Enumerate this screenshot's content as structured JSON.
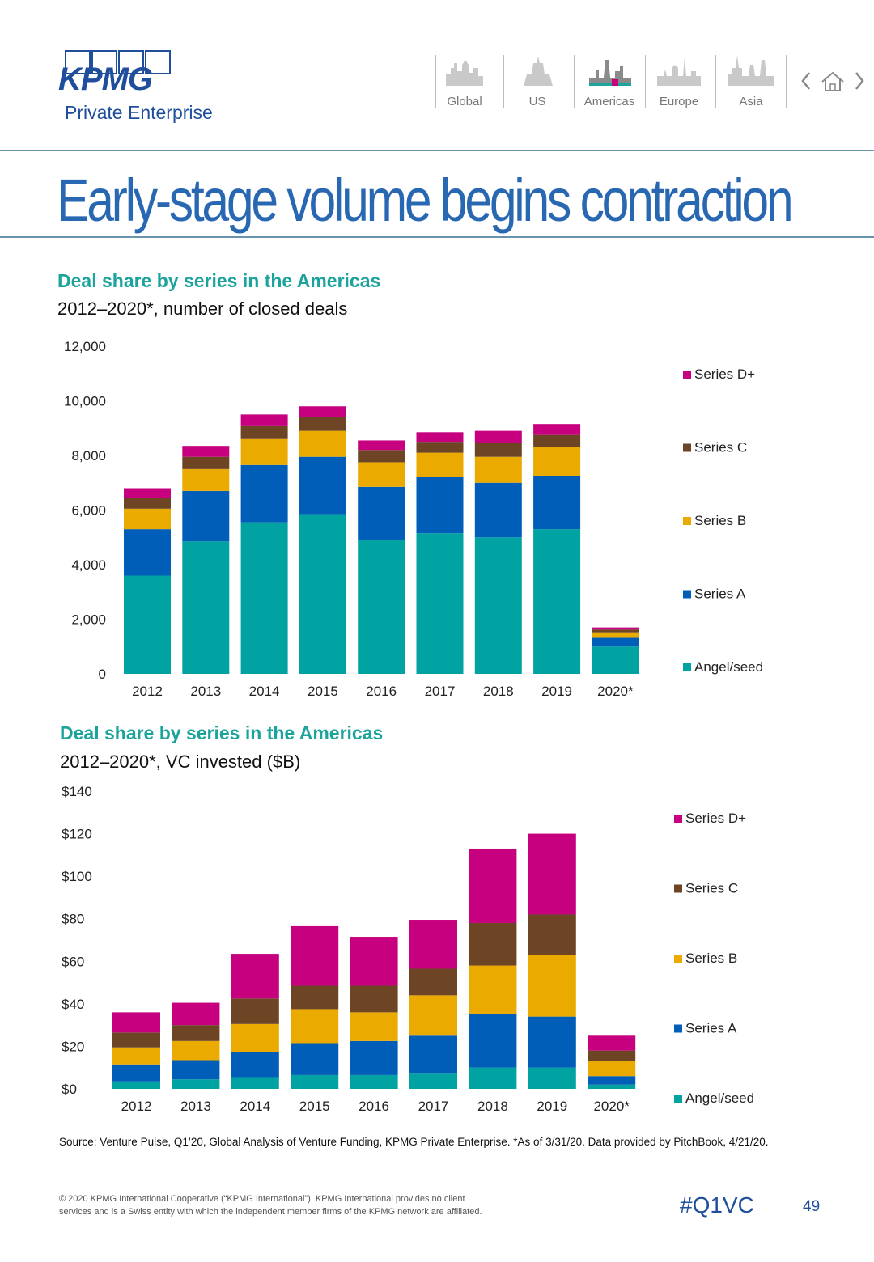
{
  "brand": {
    "logo": "KPMG",
    "subtitle": "Private Enterprise"
  },
  "nav": {
    "items": [
      {
        "label": "Global",
        "icon": "skyline-global-icon",
        "active": false
      },
      {
        "label": "US",
        "icon": "skyline-us-icon",
        "active": false
      },
      {
        "label": "Americas",
        "icon": "skyline-americas-icon",
        "active": true
      },
      {
        "label": "Europe",
        "icon": "skyline-europe-icon",
        "active": false
      },
      {
        "label": "Asia",
        "icon": "skyline-asia-icon",
        "active": false
      }
    ],
    "controls": [
      "chevron-left-icon",
      "home-icon",
      "chevron-right-icon"
    ]
  },
  "page_title": "Early-stage volume begins contraction",
  "colors": {
    "angel_seed": "#00a3a1",
    "series_a": "#005eb8",
    "series_b": "#eaaa00",
    "series_c": "#6d4525",
    "series_d": "#c6007e",
    "title_blue": "#2867b2",
    "heading_teal": "#1ba39c"
  },
  "chart_data": [
    {
      "type": "bar",
      "stacked": true,
      "title": "Deal share by series in the Americas",
      "subtitle": "2012–2020*, number of closed deals",
      "categories": [
        "2012",
        "2013",
        "2014",
        "2015",
        "2016",
        "2017",
        "2018",
        "2019",
        "2020*"
      ],
      "ylim": [
        0,
        12000
      ],
      "yticks": [
        "0",
        "2,000",
        "4,000",
        "6,000",
        "8,000",
        "10,000",
        "12,000"
      ],
      "ytick_values": [
        0,
        2000,
        4000,
        6000,
        8000,
        10000,
        12000
      ],
      "legend_position": "right",
      "series": [
        {
          "name": "Angel/seed",
          "values": [
            3600,
            4850,
            5550,
            5850,
            4900,
            5150,
            5000,
            5300,
            1000
          ]
        },
        {
          "name": "Series A",
          "values": [
            1700,
            1850,
            2100,
            2100,
            1950,
            2050,
            2000,
            1950,
            320
          ]
        },
        {
          "name": "Series B",
          "values": [
            750,
            800,
            950,
            950,
            900,
            900,
            950,
            1050,
            200
          ]
        },
        {
          "name": "Series C",
          "values": [
            400,
            450,
            500,
            500,
            450,
            400,
            500,
            450,
            100
          ]
        },
        {
          "name": "Series D+",
          "values": [
            350,
            400,
            400,
            400,
            350,
            350,
            450,
            400,
            80
          ]
        }
      ]
    },
    {
      "type": "bar",
      "stacked": true,
      "title": "Deal share by series in the Americas",
      "subtitle": "2012–2020*, VC invested ($B)",
      "categories": [
        "2012",
        "2013",
        "2014",
        "2015",
        "2016",
        "2017",
        "2018",
        "2019",
        "2020*"
      ],
      "ylim": [
        0,
        140
      ],
      "yticks": [
        "$0",
        "$20",
        "$40",
        "$60",
        "$80",
        "$100",
        "$120",
        "$140"
      ],
      "ytick_values": [
        0,
        20,
        40,
        60,
        80,
        100,
        120,
        140
      ],
      "legend_position": "right",
      "series": [
        {
          "name": "Angel/seed",
          "values": [
            3.5,
            4.5,
            5.5,
            6.5,
            6.5,
            7.5,
            10,
            10,
            2
          ]
        },
        {
          "name": "Series A",
          "values": [
            8,
            9,
            12,
            15,
            16,
            17.5,
            25,
            24,
            4
          ]
        },
        {
          "name": "Series B",
          "values": [
            8,
            9,
            13,
            16,
            13.5,
            19,
            23,
            29,
            7
          ]
        },
        {
          "name": "Series C",
          "values": [
            7,
            7.5,
            12,
            11,
            12.5,
            12.5,
            20,
            19,
            5
          ]
        },
        {
          "name": "Series D+",
          "values": [
            9.5,
            10.5,
            21,
            28,
            23,
            23,
            35,
            38,
            7
          ]
        }
      ]
    }
  ],
  "source": "Source: Venture Pulse, Q1’20, Global Analysis of Venture Funding, KPMG Private Enterprise. *As of 3/31/20. Data provided by PitchBook, 4/21/20.",
  "copyright": [
    "© 2020 KPMG International Cooperative (“KPMG International”). KPMG International provides no client",
    "services and is a Swiss entity with which the independent member firms of the KPMG network are affiliated."
  ],
  "hashtag": "#Q1VC",
  "page_number": "49"
}
